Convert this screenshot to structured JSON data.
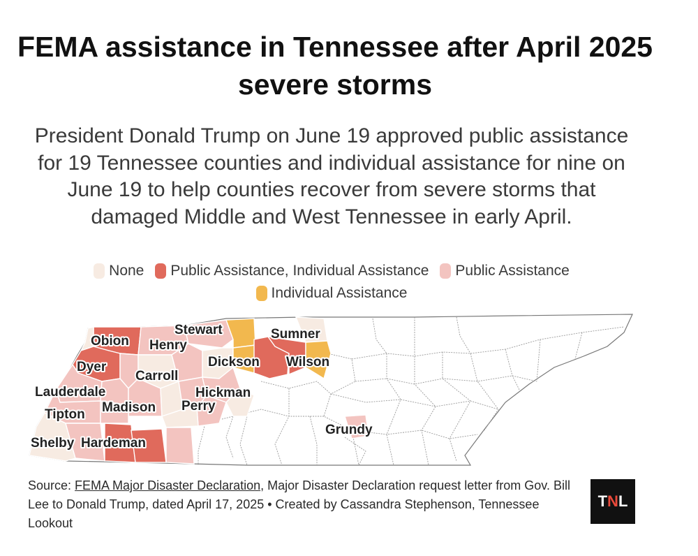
{
  "title": "FEMA assistance in Tennessee after April 2025 severe storms",
  "subtitle": "President Donald Trump on June 19 approved public assistance for 19 Tennessee counties and individual assistance for nine on June 19 to help counties recover from severe storms that damaged Middle and West Tennessee in early April.",
  "legend": [
    {
      "label": "None",
      "color": "#f7ebe2"
    },
    {
      "label": "Public Assistance, Individual Assistance",
      "color": "#e06a5c"
    },
    {
      "label": "Public Assistance",
      "color": "#f3c4c0"
    },
    {
      "label": "Individual Assistance",
      "color": "#f2b84e"
    }
  ],
  "map": {
    "colors": {
      "none": "#f7ebe2",
      "both": "#e06a5c",
      "public": "#f3c4c0",
      "individual": "#f2b84e",
      "unaffected": "#ffffff",
      "border": "#8a8a8a"
    },
    "counties": [
      {
        "name": "Obion",
        "category": "both"
      },
      {
        "name": "Henry",
        "category": "public"
      },
      {
        "name": "Stewart",
        "category": "public"
      },
      {
        "name": "Sumner",
        "category": "none"
      },
      {
        "name": "Dyer",
        "category": "both"
      },
      {
        "name": "Dickson",
        "category": "individual"
      },
      {
        "name": "Wilson",
        "category": "individual"
      },
      {
        "name": "Carroll",
        "category": "none"
      },
      {
        "name": "Lauderdale",
        "category": "public"
      },
      {
        "name": "Hickman",
        "category": "public"
      },
      {
        "name": "Madison",
        "category": "public"
      },
      {
        "name": "Perry",
        "category": "public"
      },
      {
        "name": "Tipton",
        "category": "public"
      },
      {
        "name": "Grundy",
        "category": "public"
      },
      {
        "name": "Shelby",
        "category": "none"
      },
      {
        "name": "Hardeman",
        "category": "both"
      }
    ]
  },
  "source": {
    "prefix": "Source: ",
    "link_text": "FEMA Major Disaster Declaration",
    "rest": ", Major Disaster Declaration request letter from Gov. Bill Lee to Donald Trump, dated April 17, 2025 • Created by Cassandra Stephenson, Tennessee Lookout"
  },
  "logo": {
    "t": "T",
    "n": "N",
    "l": "L"
  }
}
